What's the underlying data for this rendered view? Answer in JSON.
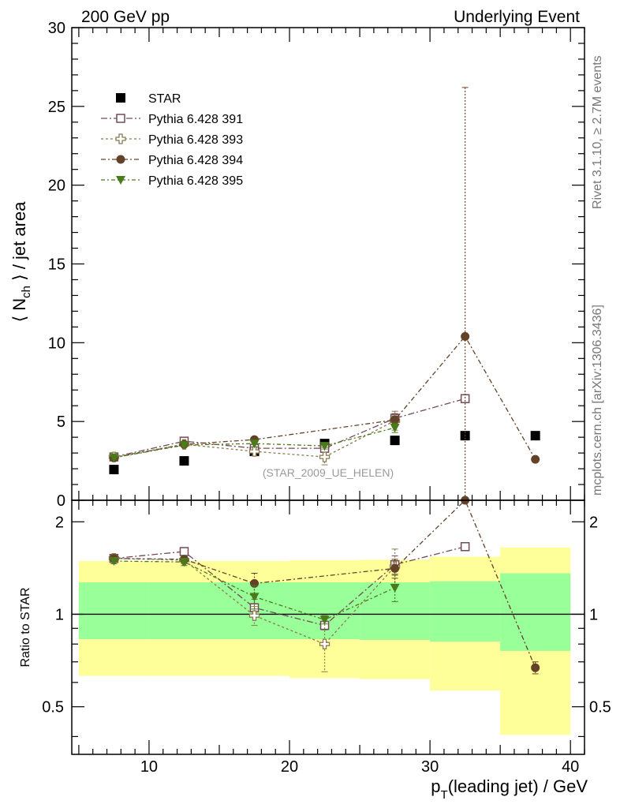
{
  "header": {
    "left": "200 GeV pp",
    "right": "Underlying Event"
  },
  "side_labels": {
    "rivet": "Rivet 3.1.10, ≥ 2.7M events",
    "mcplots": "mcplots.cern.ch [arXiv:1306.3436]"
  },
  "colors": {
    "band_inner": "#99ff99",
    "band_outer": "#ffff99",
    "star": "#000000",
    "p391": "#734a59",
    "p393": "#8c7a52",
    "p394": "#634229",
    "p395": "#4a7a19"
  },
  "chart_data": [
    {
      "type": "line",
      "panel": "main",
      "ylabel": "⟨ N",
      "ylabel_sub": "ch",
      "ylabel_tail": " ⟩ / jet area",
      "ylim": [
        0,
        30
      ],
      "xlim": [
        4.5,
        41
      ],
      "yticks": [
        0,
        5,
        10,
        15,
        20,
        25,
        30
      ],
      "watermark": "(STAR_2009_UE_HELEN)",
      "legend_position": "top-left",
      "series": [
        {
          "name": "STAR",
          "marker": "filled-square",
          "line": false,
          "color": "#000000",
          "x": [
            7.5,
            12.5,
            17.5,
            22.5,
            27.5,
            32.5,
            37.5
          ],
          "y": [
            1.95,
            2.5,
            3.1,
            3.6,
            3.8,
            4.1,
            4.1
          ],
          "err": [
            0,
            0,
            0,
            0,
            0,
            0,
            0
          ]
        },
        {
          "name": "Pythia 6.428 391",
          "marker": "open-square",
          "line": true,
          "color": "#734a59",
          "x": [
            7.5,
            12.5,
            17.5,
            22.5,
            27.5,
            32.5
          ],
          "y": [
            2.75,
            3.75,
            3.3,
            3.3,
            5.2,
            6.45
          ],
          "err": [
            0.1,
            0.1,
            0.15,
            0.2,
            0.3,
            0.15
          ]
        },
        {
          "name": "Pythia 6.428 393",
          "marker": "open-cross",
          "line": true,
          "color": "#8c7a52",
          "x": [
            7.5,
            12.5,
            17.5,
            22.5,
            27.5
          ],
          "y": [
            2.75,
            3.55,
            3.1,
            2.75,
            5.05
          ],
          "err": [
            0.1,
            0.1,
            0.25,
            0.5,
            0.6
          ]
        },
        {
          "name": "Pythia 6.428 394",
          "marker": "filled-circle",
          "line": true,
          "color": "#634229",
          "x": [
            7.5,
            12.5,
            17.5,
            27.5,
            32.5,
            37.5
          ],
          "y": [
            2.7,
            3.55,
            3.85,
            5.1,
            10.4,
            2.6
          ],
          "err": [
            0.1,
            0.1,
            0.15,
            0.25,
            15.8,
            0.1
          ]
        },
        {
          "name": "Pythia 6.428 395",
          "marker": "filled-triangle-down",
          "line": true,
          "color": "#4a7a19",
          "x": [
            7.5,
            12.5,
            17.5,
            22.5,
            27.5
          ],
          "y": [
            2.7,
            3.5,
            3.6,
            3.45,
            4.6
          ],
          "err": [
            0.1,
            0.1,
            0.2,
            0.1,
            0.3
          ]
        }
      ]
    },
    {
      "type": "line",
      "panel": "ratio",
      "ylabel": "Ratio to STAR",
      "xlabel": "p",
      "xlabel_sub": "T",
      "xlabel_tail": "(leading jet) / GeV",
      "ylim": [
        0.35,
        2.35
      ],
      "xlim": [
        4.5,
        41
      ],
      "yticks": [
        0.5,
        1,
        2
      ],
      "xticks": [
        10,
        20,
        30,
        40
      ],
      "bands": [
        {
          "x0": 5,
          "x1": 10,
          "inner": [
            0.83,
            1.27
          ],
          "outer": [
            0.63,
            1.49
          ]
        },
        {
          "x0": 10,
          "x1": 15,
          "inner": [
            0.83,
            1.27
          ],
          "outer": [
            0.63,
            1.49
          ]
        },
        {
          "x0": 15,
          "x1": 20,
          "inner": [
            0.83,
            1.27
          ],
          "outer": [
            0.63,
            1.49
          ]
        },
        {
          "x0": 20,
          "x1": 25,
          "inner": [
            0.83,
            1.27
          ],
          "outer": [
            0.62,
            1.5
          ]
        },
        {
          "x0": 25,
          "x1": 30,
          "inner": [
            0.825,
            1.27
          ],
          "outer": [
            0.615,
            1.505
          ]
        },
        {
          "x0": 30,
          "x1": 35,
          "inner": [
            0.815,
            1.28
          ],
          "outer": [
            0.565,
            1.54
          ]
        },
        {
          "x0": 35,
          "x1": 40,
          "inner": [
            0.76,
            1.36
          ],
          "outer": [
            0.405,
            1.65
          ]
        }
      ],
      "series": [
        {
          "name": "Pythia 6.428 391",
          "marker": "open-square",
          "color": "#734a59",
          "x": [
            7.5,
            12.5,
            17.5,
            22.5,
            27.5,
            32.5
          ],
          "y": [
            1.52,
            1.6,
            1.05,
            0.92,
            1.45,
            1.66
          ],
          "err": [
            0.03,
            0.04,
            0.07,
            0.03,
            0.1,
            0.04
          ]
        },
        {
          "name": "Pythia 6.428 393",
          "marker": "open-cross",
          "color": "#8c7a52",
          "x": [
            7.5,
            12.5,
            17.5,
            22.5,
            27.5
          ],
          "y": [
            1.52,
            1.5,
            0.99,
            0.8,
            1.43
          ],
          "err": [
            0.03,
            0.04,
            0.07,
            0.15,
            0.2
          ]
        },
        {
          "name": "Pythia 6.428 394",
          "marker": "filled-circle",
          "color": "#634229",
          "x": [
            7.5,
            12.5,
            17.5,
            27.5,
            32.5,
            37.5
          ],
          "y": [
            1.52,
            1.51,
            1.26,
            1.41,
            2.5,
            0.67
          ],
          "err": [
            0.03,
            0.04,
            0.1,
            0.1,
            0.15,
            0.03
          ]
        },
        {
          "name": "Pythia 6.428 395",
          "marker": "filled-triangle-down",
          "color": "#4a7a19",
          "x": [
            7.5,
            12.5,
            17.5,
            22.5,
            27.5
          ],
          "y": [
            1.49,
            1.48,
            1.14,
            0.96,
            1.22
          ],
          "err": [
            0.03,
            0.04,
            0.1,
            0.03,
            0.12
          ]
        }
      ]
    }
  ]
}
